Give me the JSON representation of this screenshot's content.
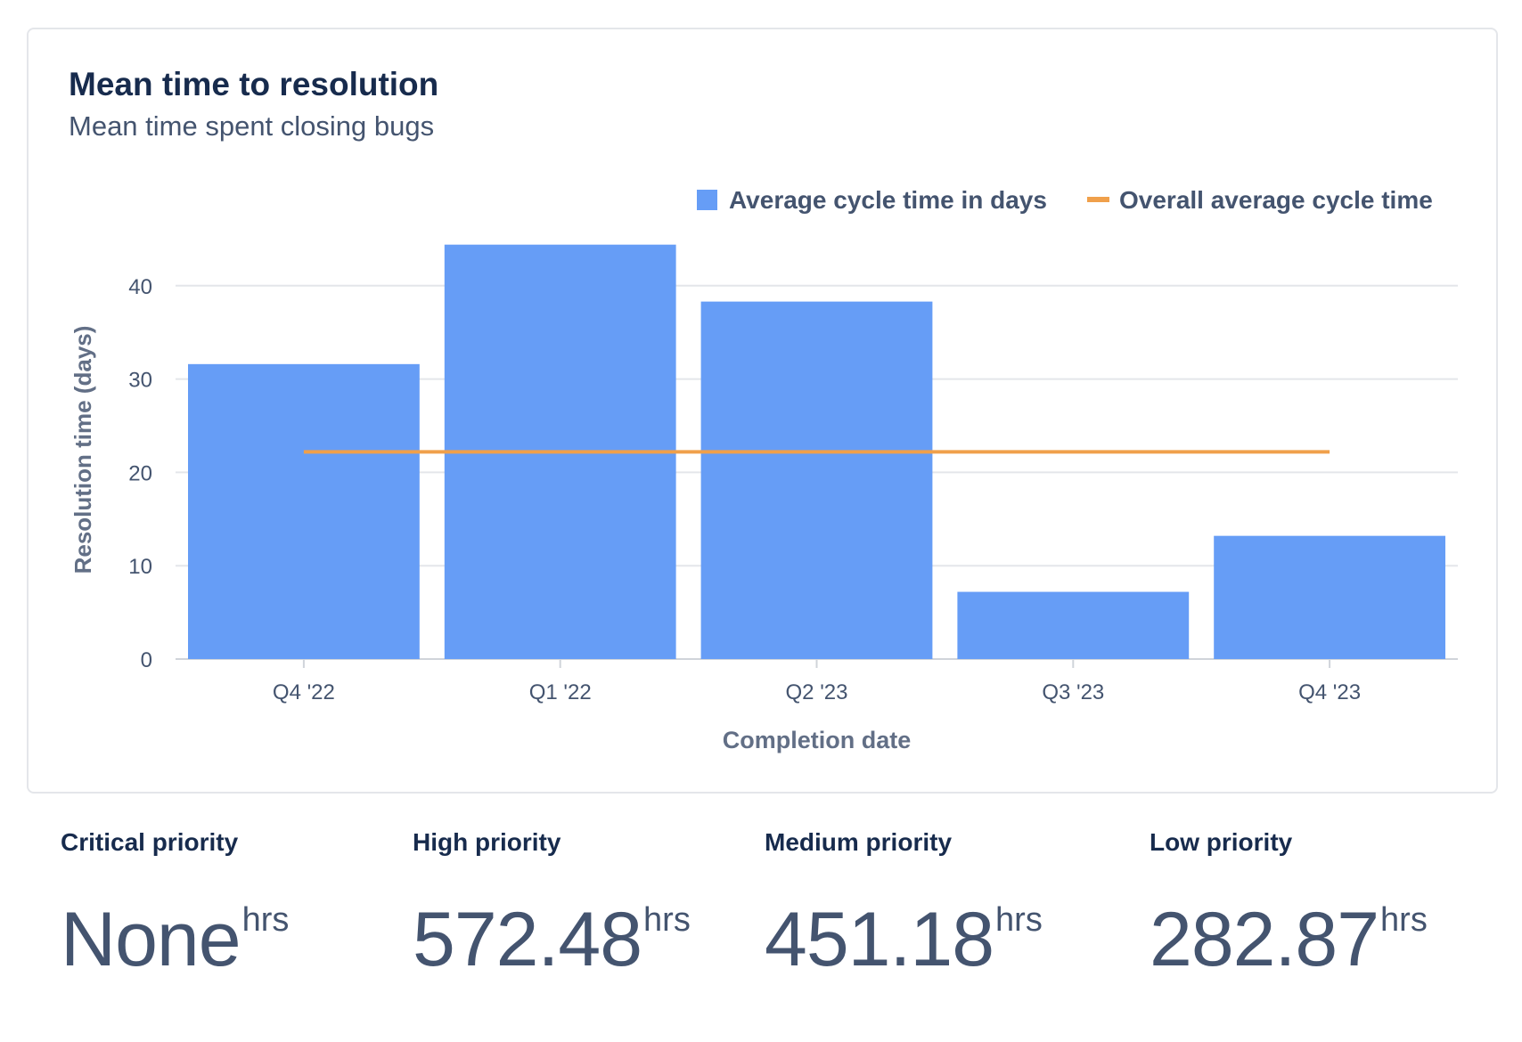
{
  "card": {
    "title": "Mean time to resolution",
    "subtitle": "Mean time spent closing bugs"
  },
  "chart_data": {
    "type": "bar",
    "title": "Mean time to resolution",
    "subtitle": "Mean time spent closing bugs",
    "categories": [
      "Q4 '22",
      "Q1 '22",
      "Q2 '23",
      "Q3 '23",
      "Q4 '23"
    ],
    "series": [
      {
        "name": "Average cycle time in days",
        "type": "bar",
        "color": "#669DF6",
        "values": [
          31.6,
          44.4,
          38.3,
          7.2,
          13.2
        ]
      },
      {
        "name": "Overall average cycle time",
        "type": "line",
        "color": "#F0A04B",
        "values": [
          22.2,
          22.2,
          22.2,
          22.2,
          22.2
        ]
      }
    ],
    "xlabel": "Completion date",
    "ylabel": "Resolution time (days)",
    "ylim": [
      0,
      44.4
    ],
    "yticks": [
      0,
      10,
      20,
      30,
      40
    ],
    "grid": true,
    "legend": "top-right"
  },
  "stats": [
    {
      "label": "Critical priority",
      "value": "None",
      "unit": "hrs"
    },
    {
      "label": "High priority",
      "value": "572.48",
      "unit": "hrs"
    },
    {
      "label": "Medium priority",
      "value": "451.18",
      "unit": "hrs"
    },
    {
      "label": "Low priority",
      "value": "282.87",
      "unit": "hrs"
    }
  ]
}
